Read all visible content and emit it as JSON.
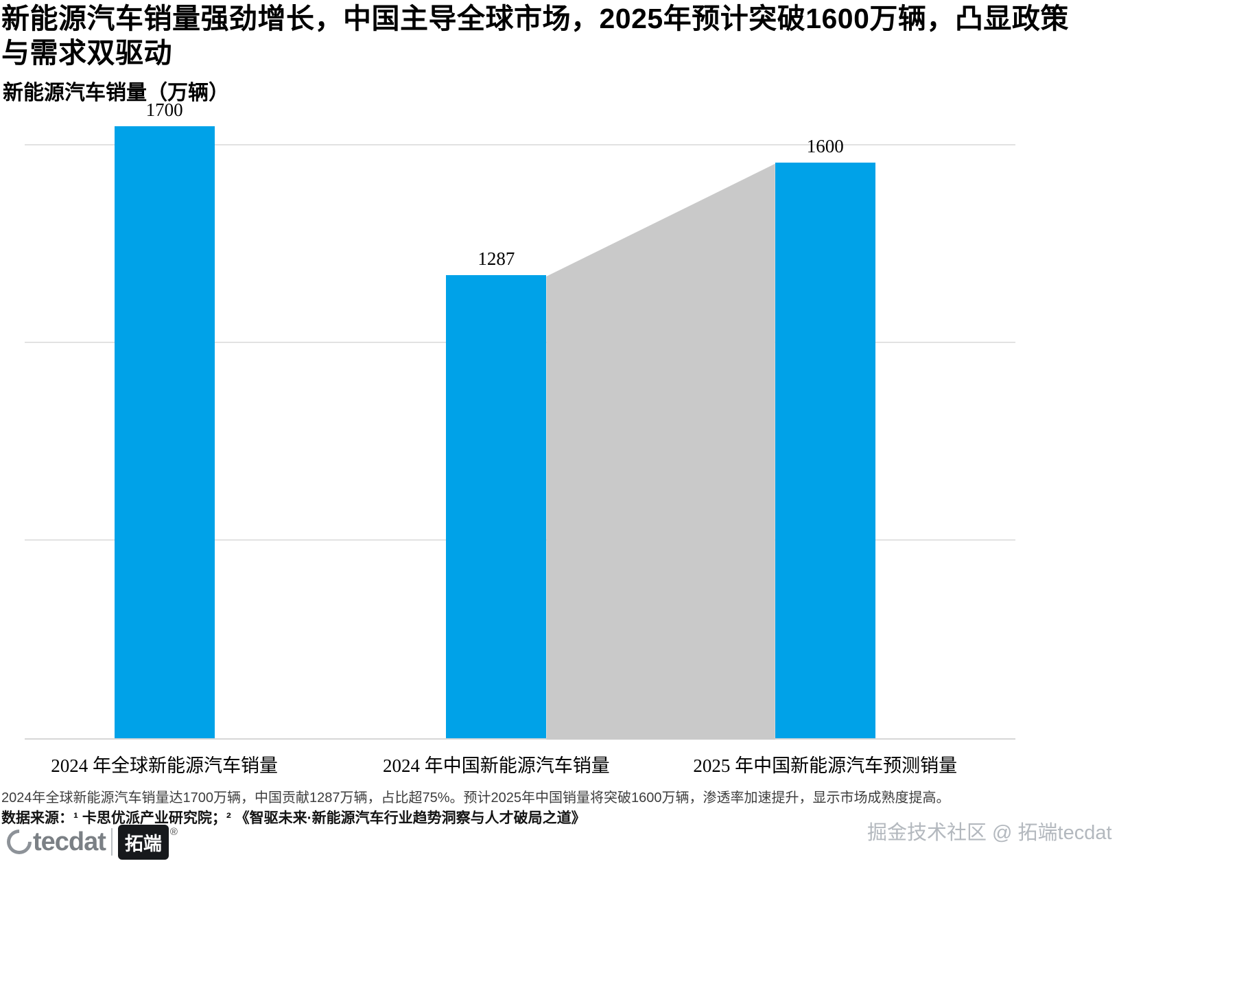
{
  "title": "新能源汽车销量强劲增长，中国主导全球市场，2025年预计突破1600万辆，凸显政策与需求双驱动",
  "chart_data": {
    "type": "bar",
    "title": "新能源汽车销量（万辆）",
    "categories": [
      "2024 年全球新能源汽车销量",
      "2024 年中国新能源汽车销量",
      "2025 年中国新能源汽车预测销量"
    ],
    "values": [
      1700,
      1287,
      1600
    ],
    "value_labels": [
      "1700",
      "1287",
      "1600"
    ],
    "xlabel": "",
    "ylabel": "",
    "ylim": [
      0,
      1750
    ],
    "gridlines": [
      550,
      1100,
      1650
    ],
    "grid": true,
    "legend_position": "none",
    "bar_color": "#00A2E8",
    "connector": {
      "between": [
        1,
        2
      ],
      "color": "#C9C9C9"
    }
  },
  "footer": {
    "summary": "2024年全球新能源汽车销量达1700万辆，中国贡献1287万辆，占比超75%。预计2025年中国销量将突破1600万辆，渗透率加速提升，显示市场成熟度提高。",
    "source": "数据来源：¹ 卡思优派产业研究院；² 《智驱未来·新能源汽车行业趋势洞察与人才破局之道》",
    "watermark": "掘金技术社区 @ 拓端tecdat"
  },
  "logo": {
    "brand": "tecdat",
    "badge": "拓端",
    "registered": "®"
  }
}
